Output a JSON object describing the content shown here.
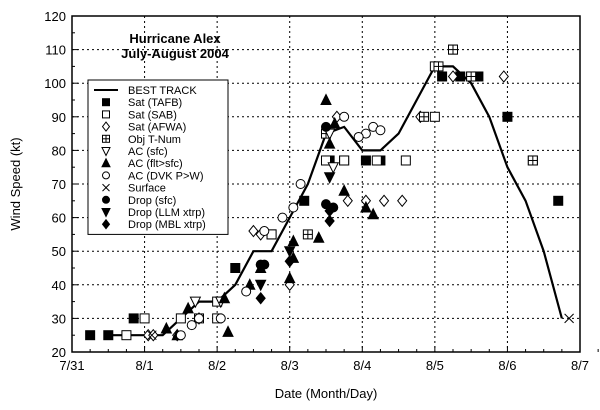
{
  "chart_data": {
    "type": "scatter",
    "title": "Hurricane Alex",
    "subtitle": "July-August 2004",
    "xlabel": "Date (Month/Day)",
    "ylabel": "Wind Speed (kt)",
    "xlim": [
      0,
      7
    ],
    "ylim": [
      20,
      120
    ],
    "x_unit": "days since 7/31 00Z",
    "xticks": [
      "7/31",
      "8/1",
      "8/2",
      "8/3",
      "8/4",
      "8/5",
      "8/6",
      "8/7"
    ],
    "yticks": [
      "20",
      "30",
      "40",
      "50",
      "60",
      "70",
      "80",
      "90",
      "100",
      "110",
      "120"
    ],
    "grid": true,
    "legend_position": "upper-left",
    "best_track": {
      "name": "BEST TRACK",
      "x": [
        0.5,
        0.75,
        1.0,
        1.25,
        1.5,
        1.75,
        2.0,
        2.25,
        2.5,
        2.75,
        3.0,
        3.25,
        3.5,
        3.75,
        4.0,
        4.25,
        4.5,
        4.75,
        5.0,
        5.25,
        5.5,
        5.75,
        6.0,
        6.25,
        6.5,
        6.75
      ],
      "y": [
        25,
        25,
        25,
        25,
        30,
        35,
        35,
        40,
        50,
        50,
        60,
        70,
        85,
        87,
        80,
        80,
        85,
        95,
        105,
        105,
        100,
        90,
        75,
        65,
        50,
        30
      ]
    },
    "series": [
      {
        "name": "Sat (TAFB)",
        "marker": "square-filled",
        "points": [
          [
            0.25,
            25
          ],
          [
            0.5,
            25
          ],
          [
            0.85,
            30
          ],
          [
            2.25,
            45
          ],
          [
            2.75,
            55
          ],
          [
            3.2,
            65
          ],
          [
            3.55,
            77
          ],
          [
            3.75,
            77
          ],
          [
            4.05,
            77
          ],
          [
            4.25,
            77
          ],
          [
            5.1,
            102
          ],
          [
            5.35,
            102
          ],
          [
            5.6,
            102
          ],
          [
            6.0,
            90
          ],
          [
            6.35,
            77
          ],
          [
            6.7,
            65
          ]
        ]
      },
      {
        "name": "Sat (SAB)",
        "marker": "square-open",
        "points": [
          [
            0.75,
            25
          ],
          [
            1.0,
            30
          ],
          [
            1.5,
            30
          ],
          [
            1.75,
            30
          ],
          [
            2.0,
            30
          ],
          [
            2.0,
            35
          ],
          [
            2.75,
            55
          ],
          [
            3.5,
            77
          ],
          [
            3.75,
            77
          ],
          [
            4.2,
            77
          ],
          [
            4.6,
            77
          ],
          [
            5.0,
            105
          ],
          [
            5.0,
            90
          ],
          [
            5.25,
            110
          ],
          [
            5.5,
            102
          ]
        ]
      },
      {
        "name": "Sat (AFWA)",
        "marker": "diamond-open",
        "points": [
          [
            1.05,
            25
          ],
          [
            1.12,
            25
          ],
          [
            1.45,
            25
          ],
          [
            1.75,
            30
          ],
          [
            2.5,
            56
          ],
          [
            2.6,
            55
          ],
          [
            3.0,
            40
          ],
          [
            3.8,
            65
          ],
          [
            4.05,
            65
          ],
          [
            4.3,
            65
          ],
          [
            4.55,
            65
          ],
          [
            3.65,
            90
          ],
          [
            4.8,
            90
          ],
          [
            5.25,
            102
          ],
          [
            5.95,
            102
          ]
        ]
      },
      {
        "name": "Obj T-Num",
        "marker": "square-plus",
        "points": [
          [
            3.5,
            85
          ],
          [
            3.25,
            55
          ],
          [
            4.85,
            90
          ],
          [
            5.05,
            105
          ],
          [
            5.5,
            102
          ],
          [
            6.35,
            77
          ],
          [
            5.25,
            110
          ]
        ]
      },
      {
        "name": "AC (sfc)",
        "marker": "triangle-down-open",
        "points": [
          [
            1.7,
            35
          ],
          [
            3.55,
            85
          ],
          [
            3.6,
            75
          ],
          [
            2.05,
            35
          ]
        ]
      },
      {
        "name": "AC (flt>sfc)",
        "marker": "triangle-up-filled",
        "points": [
          [
            1.3,
            27
          ],
          [
            1.45,
            25
          ],
          [
            1.6,
            33
          ],
          [
            2.1,
            36
          ],
          [
            2.15,
            26
          ],
          [
            2.45,
            40
          ],
          [
            2.6,
            45
          ],
          [
            3.0,
            42
          ],
          [
            3.05,
            48
          ],
          [
            3.5,
            95
          ],
          [
            3.62,
            88
          ],
          [
            3.75,
            68
          ],
          [
            4.15,
            61
          ],
          [
            3.55,
            82
          ],
          [
            4.05,
            63
          ],
          [
            3.05,
            53
          ],
          [
            3.4,
            54
          ]
        ]
      },
      {
        "name": "AC (DVK P>W)",
        "marker": "circle-open",
        "points": [
          [
            1.5,
            25
          ],
          [
            1.65,
            28
          ],
          [
            1.75,
            30
          ],
          [
            2.05,
            30
          ],
          [
            2.4,
            38
          ],
          [
            2.65,
            56
          ],
          [
            2.9,
            60
          ],
          [
            3.05,
            63
          ],
          [
            3.15,
            70
          ],
          [
            3.75,
            90
          ],
          [
            4.05,
            85
          ],
          [
            4.15,
            87
          ],
          [
            4.25,
            86
          ],
          [
            3.95,
            84
          ]
        ]
      },
      {
        "name": "Surface",
        "marker": "x",
        "points": [
          [
            1.1,
            25
          ],
          [
            6.85,
            30
          ]
        ]
      },
      {
        "name": "Drop (sfc)",
        "marker": "circle-filled",
        "points": [
          [
            2.6,
            46
          ],
          [
            2.65,
            46
          ],
          [
            3.5,
            64
          ],
          [
            3.6,
            63
          ],
          [
            4.05,
            77
          ],
          [
            3.5,
            87
          ]
        ]
      },
      {
        "name": "Drop (LLM xtrp)",
        "marker": "triangle-down-filled",
        "points": [
          [
            2.6,
            40
          ],
          [
            3.55,
            72
          ],
          [
            3.0,
            50
          ]
        ]
      },
      {
        "name": "Drop (MBL xtrp)",
        "marker": "diamond-filled",
        "points": [
          [
            2.6,
            36
          ],
          [
            3.55,
            62
          ],
          [
            3.55,
            59
          ],
          [
            3.0,
            47
          ]
        ]
      }
    ]
  }
}
